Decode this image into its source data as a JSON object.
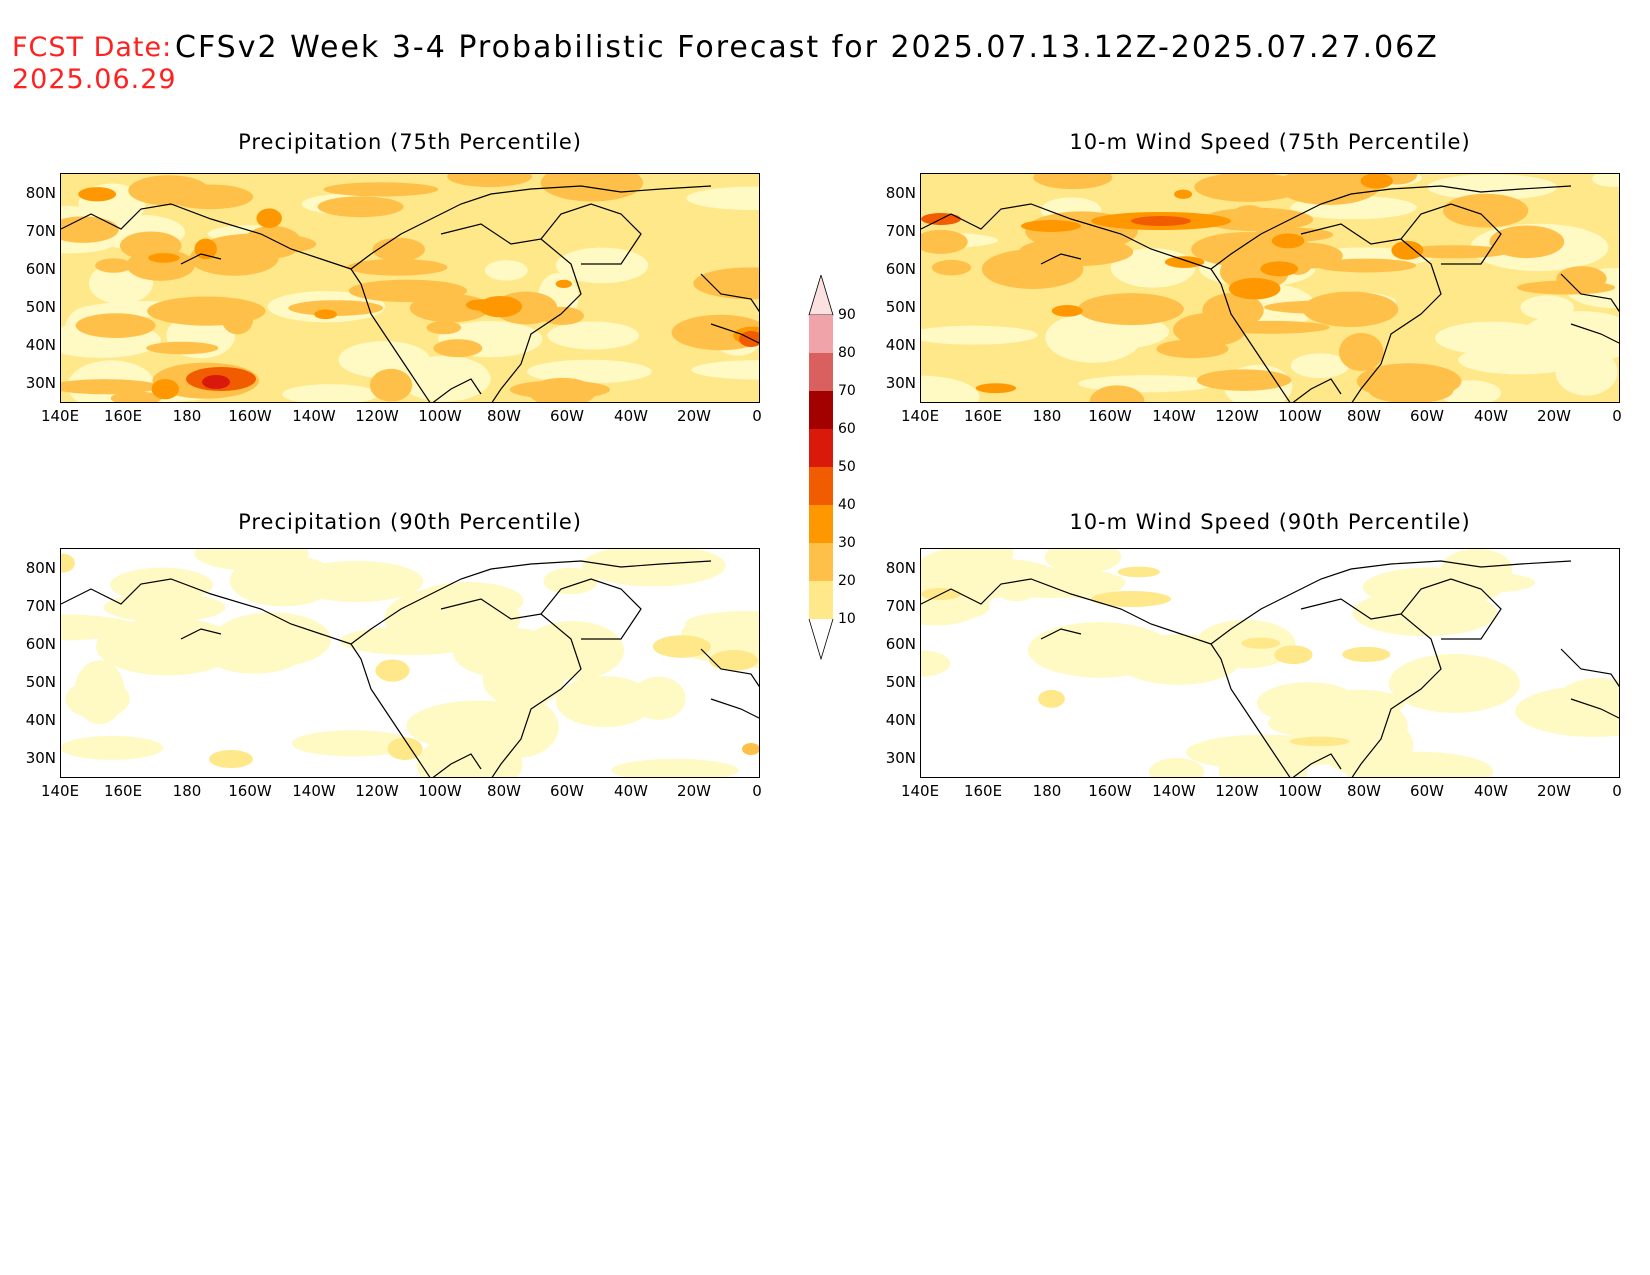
{
  "header": {
    "fcst_label": "FCST Date:",
    "fcst_date": "2025.06.29",
    "title": "CFSv2 Week 3-4 Probabilistic Forecast for 2025.07.13.12Z-2025.07.27.06Z"
  },
  "panels": [
    {
      "title": "Precipitation (75th Percentile)",
      "intensity": "high",
      "variable": "precip"
    },
    {
      "title": "10-m Wind Speed (75th Percentile)",
      "intensity": "high",
      "variable": "wind"
    },
    {
      "title": "Precipitation (90th Percentile)",
      "intensity": "low",
      "variable": "precip"
    },
    {
      "title": "10-m Wind Speed (90th Percentile)",
      "intensity": "low",
      "variable": "wind"
    }
  ],
  "axes": {
    "lat_labels": [
      "80N",
      "70N",
      "60N",
      "50N",
      "40N",
      "30N"
    ],
    "lon_labels": [
      "140E",
      "160E",
      "180",
      "160W",
      "140W",
      "120W",
      "100W",
      "80W",
      "60W",
      "40W",
      "20W",
      "0"
    ]
  },
  "colorbar": {
    "levels": [
      "10",
      "20",
      "30",
      "40",
      "50",
      "60",
      "70",
      "80",
      "90"
    ],
    "colors": [
      "#fff9c4",
      "#ffe88a",
      "#ffc04a",
      "#ff9800",
      "#f25c00",
      "#d91a0a",
      "#a30000",
      "#d9605f",
      "#f0a3a8",
      "#fde0e0"
    ]
  }
}
